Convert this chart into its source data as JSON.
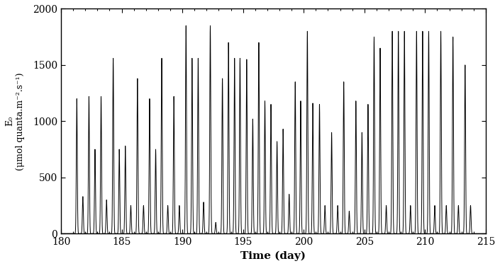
{
  "xlim": [
    180,
    215
  ],
  "ylim": [
    0,
    2000
  ],
  "xticks": [
    180,
    185,
    190,
    195,
    200,
    205,
    210,
    215
  ],
  "yticks": [
    0,
    500,
    1000,
    1500,
    2000
  ],
  "xlabel": "Time (day)",
  "ylabel_top": "E₀",
  "ylabel_bottom": "(μmol quanta.m⁻².s⁻¹)",
  "line_color": "#000000",
  "line_width": 0.7,
  "background_color": "#ffffff",
  "sigma": 0.04,
  "peaks": [
    [
      181.3,
      1200
    ],
    [
      181.8,
      330
    ],
    [
      182.3,
      1220
    ],
    [
      182.8,
      750
    ],
    [
      183.3,
      1220
    ],
    [
      183.75,
      300
    ],
    [
      184.3,
      1560
    ],
    [
      184.8,
      750
    ],
    [
      185.3,
      780
    ],
    [
      185.75,
      250
    ],
    [
      186.3,
      1380
    ],
    [
      186.8,
      250
    ],
    [
      187.3,
      1200
    ],
    [
      187.8,
      750
    ],
    [
      188.3,
      1560
    ],
    [
      188.8,
      250
    ],
    [
      189.3,
      1220
    ],
    [
      189.75,
      250
    ],
    [
      190.3,
      1850
    ],
    [
      190.8,
      1560
    ],
    [
      191.3,
      1560
    ],
    [
      191.75,
      280
    ],
    [
      192.3,
      1850
    ],
    [
      192.75,
      100
    ],
    [
      193.3,
      1380
    ],
    [
      193.8,
      1700
    ],
    [
      194.3,
      1560
    ],
    [
      194.75,
      1560
    ],
    [
      195.3,
      1550
    ],
    [
      195.8,
      1020
    ],
    [
      196.3,
      1700
    ],
    [
      196.8,
      1180
    ],
    [
      197.3,
      1150
    ],
    [
      197.8,
      820
    ],
    [
      198.3,
      930
    ],
    [
      198.8,
      350
    ],
    [
      199.3,
      1350
    ],
    [
      199.75,
      1180
    ],
    [
      200.3,
      1800
    ],
    [
      200.75,
      1160
    ],
    [
      201.3,
      1150
    ],
    [
      201.75,
      250
    ],
    [
      202.3,
      900
    ],
    [
      202.8,
      250
    ],
    [
      203.3,
      1350
    ],
    [
      203.75,
      200
    ],
    [
      204.3,
      1180
    ],
    [
      204.8,
      900
    ],
    [
      205.3,
      1150
    ],
    [
      205.8,
      1750
    ],
    [
      206.3,
      1650
    ],
    [
      206.8,
      250
    ],
    [
      207.3,
      1800
    ],
    [
      207.8,
      1800
    ],
    [
      208.3,
      1800
    ],
    [
      208.8,
      250
    ],
    [
      209.3,
      1800
    ],
    [
      209.8,
      1800
    ],
    [
      210.3,
      1800
    ],
    [
      210.8,
      250
    ],
    [
      211.3,
      1800
    ],
    [
      211.75,
      250
    ],
    [
      212.3,
      1750
    ],
    [
      212.75,
      250
    ],
    [
      213.3,
      1500
    ],
    [
      213.75,
      250
    ]
  ]
}
